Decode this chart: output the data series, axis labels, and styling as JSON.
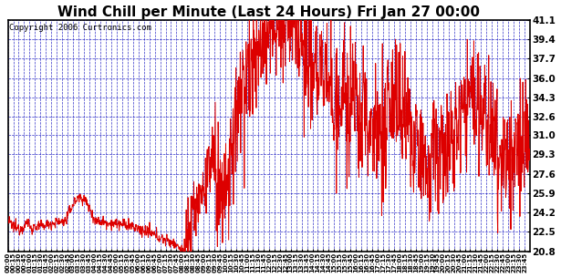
{
  "title": "Wind Chill per Minute (Last 24 Hours) Fri Jan 27 00:00",
  "copyright": "Copyright 2006 Curtronics.com",
  "y_ticks": [
    20.8,
    22.5,
    24.2,
    25.9,
    27.6,
    29.3,
    31.0,
    32.6,
    34.3,
    36.0,
    37.7,
    39.4,
    41.1
  ],
  "ylim": [
    20.8,
    41.1
  ],
  "line_color": "#dd0000",
  "bg_color": "#ffffff",
  "plot_bg_color": "#ffffff",
  "grid_color": "#0000bb",
  "title_color": "#000000",
  "border_color": "#000000",
  "copyright_fontsize": 6.5,
  "title_fontsize": 11,
  "x_tick_fontsize": 5.0,
  "y_tick_fontsize": 7.5
}
